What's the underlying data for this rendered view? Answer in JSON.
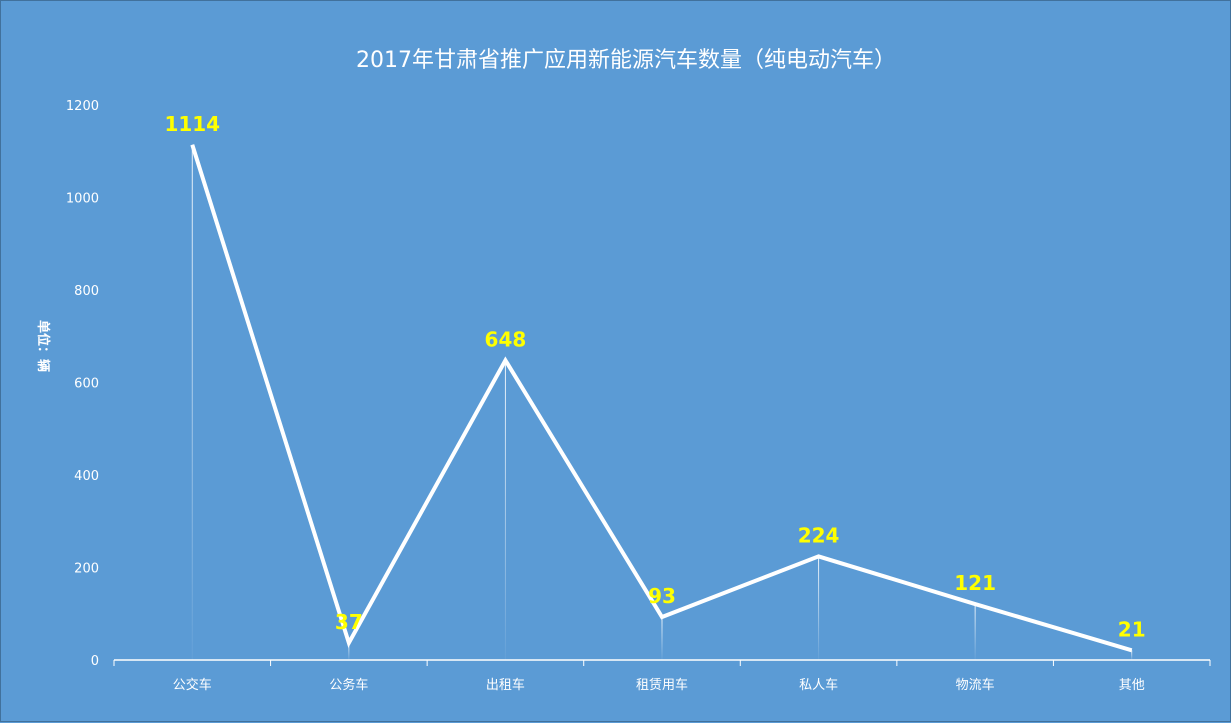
{
  "chart_data": {
    "type": "line",
    "title": "2017年甘肃省推广应用新能源汽车数量（纯电动汽车）",
    "ylabel": "单位：辆",
    "xlabel": "",
    "categories": [
      "公交车",
      "公务车",
      "出租车",
      "租赁用车",
      "私人车",
      "物流车",
      "其他"
    ],
    "values": [
      1114,
      37,
      648,
      93,
      224,
      121,
      21
    ],
    "yticks": [
      0,
      200,
      400,
      600,
      800,
      1000,
      1200
    ],
    "ylim": [
      0,
      1200
    ],
    "grid": false,
    "legend": "none",
    "colors": {
      "background": "#5b9bd5",
      "line": "#ffffff",
      "data_label": "#ffff00",
      "text": "#ffffff"
    }
  }
}
